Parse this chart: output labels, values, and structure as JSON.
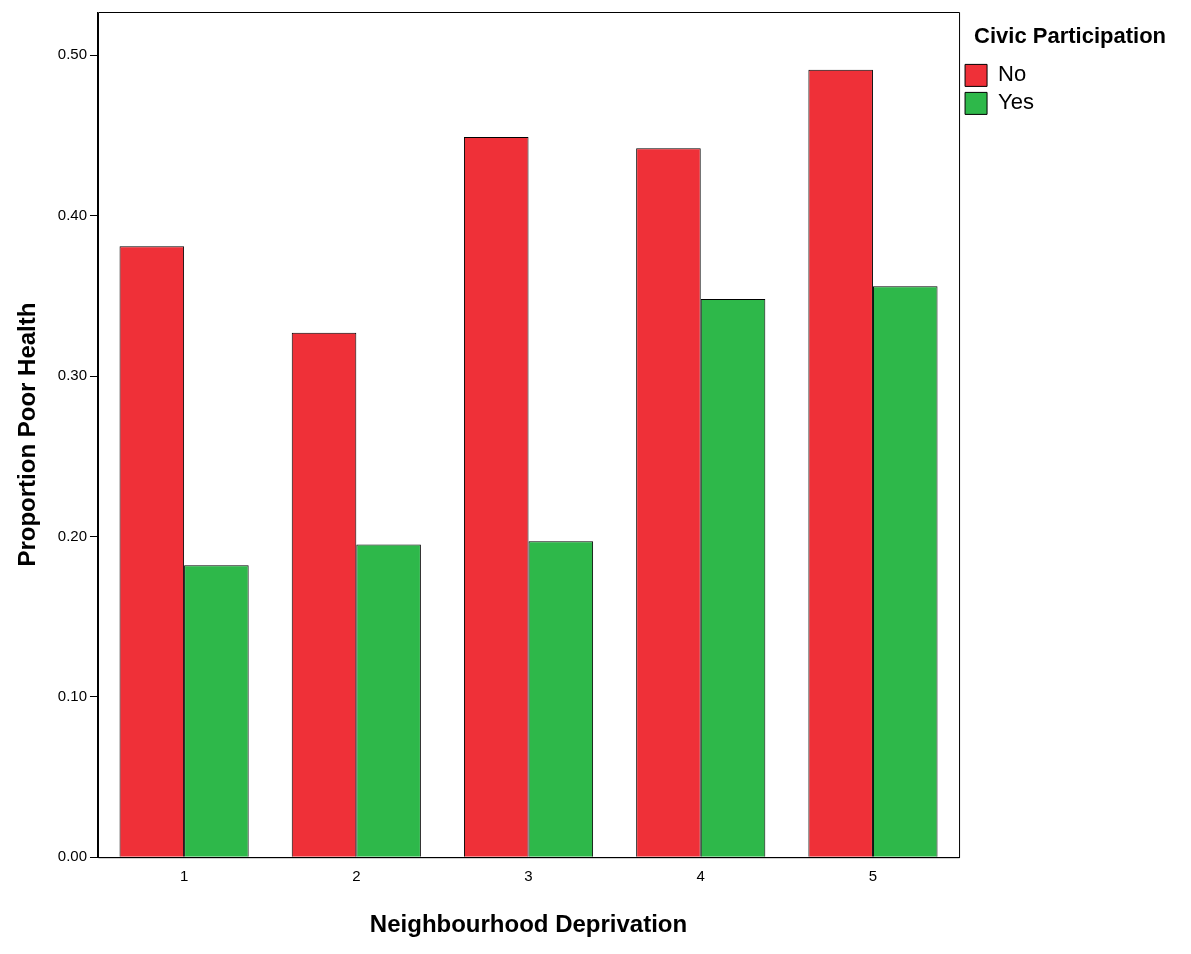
{
  "chart_data": {
    "type": "bar",
    "xlabel": "Neighbourhood Deprivation",
    "ylabel": "Proportion Poor Health",
    "legend_title": "Civic Participation",
    "legend": "top right",
    "grid": false,
    "categories": [
      "1",
      "2",
      "3",
      "4",
      "5"
    ],
    "series": [
      {
        "name": "No",
        "color": "#ef3038",
        "values": [
          0.381,
          0.327,
          0.449,
          0.442,
          0.491
        ]
      },
      {
        "name": "Yes",
        "color": "#2eb84a",
        "values": [
          0.182,
          0.195,
          0.197,
          0.348,
          0.356
        ]
      }
    ],
    "ylim": [
      0,
      0.527
    ],
    "yticks": [
      {
        "value": 0,
        "label": "0.00"
      },
      {
        "value": 0.1,
        "label": "0.10"
      },
      {
        "value": 0.2,
        "label": "0.20"
      },
      {
        "value": 0.3,
        "label": "0.30"
      },
      {
        "value": 0.4,
        "label": "0.40"
      },
      {
        "value": 0.5,
        "label": "0.50"
      }
    ]
  }
}
